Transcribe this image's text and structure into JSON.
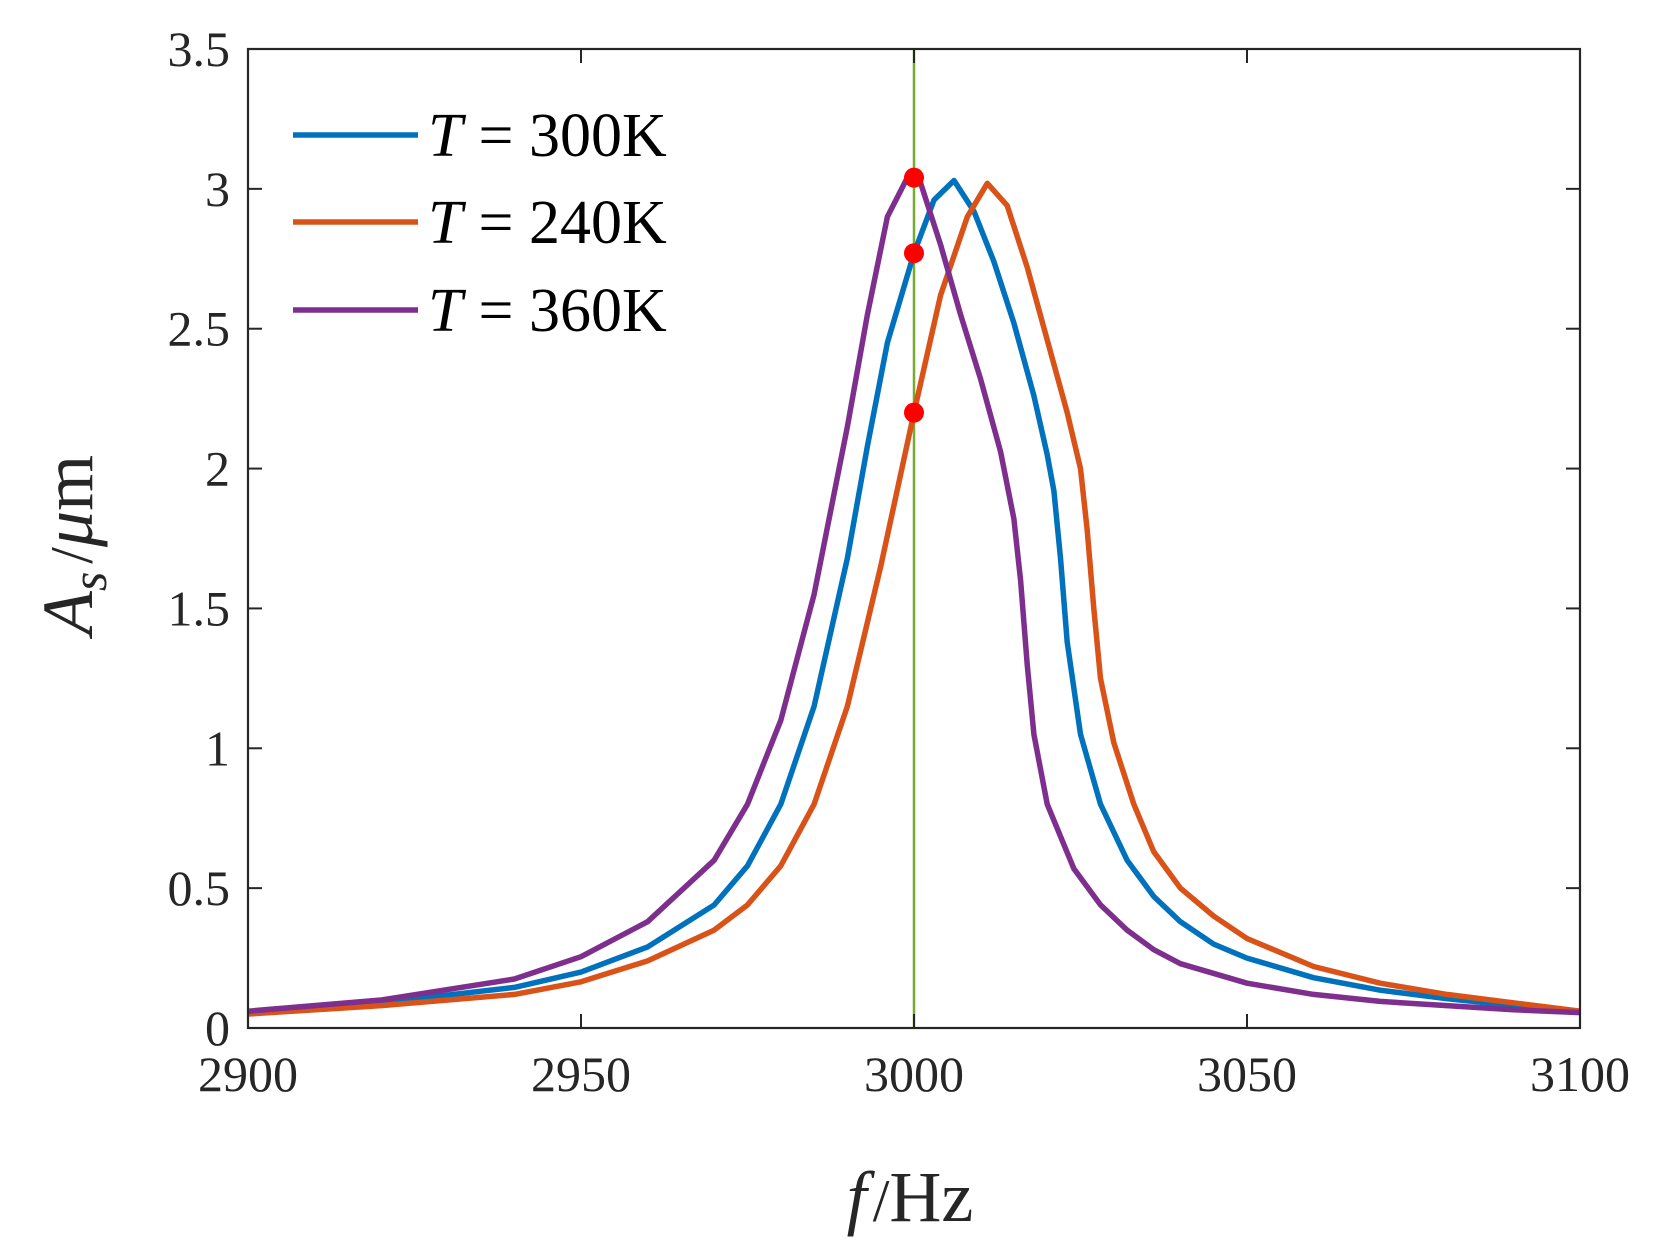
{
  "chart_data": {
    "type": "line",
    "title": "",
    "xlabel_symbol": "f",
    "xlabel_unit": "Hz",
    "ylabel_symbol": "A",
    "ylabel_subscript": "s",
    "ylabel_unit_mu": "μ",
    "ylabel_unit_m": "m",
    "xlim": [
      2900,
      3100
    ],
    "ylim": [
      0,
      3.5
    ],
    "x_ticks": [
      2900,
      2950,
      3000,
      3050,
      3100
    ],
    "x_tick_labels": [
      "2900",
      "2950",
      "3000",
      "3050",
      "3100"
    ],
    "y_ticks": [
      0,
      0.5,
      1,
      1.5,
      2,
      2.5,
      3,
      3.5
    ],
    "y_tick_labels": [
      "0",
      "0.5",
      "1",
      "1.5",
      "2",
      "2.5",
      "3",
      "3.5"
    ],
    "grid": false,
    "legend_position": "top-left",
    "reference_line": {
      "x": 3000,
      "color": "#77AC30"
    },
    "series": [
      {
        "name": "T = 300K",
        "legend_symbol": "T",
        "legend_text": "= 300K",
        "color": "#0072BD",
        "x": [
          2900,
          2920,
          2940,
          2950,
          2960,
          2970,
          2975,
          2980,
          2985,
          2990,
          2993,
          2996,
          3000,
          3003,
          3006,
          3009,
          3012,
          3015,
          3018,
          3020,
          3021,
          3022,
          3023,
          3025,
          3028,
          3032,
          3036,
          3040,
          3045,
          3050,
          3060,
          3070,
          3080,
          3090,
          3100
        ],
        "y": [
          0.055,
          0.09,
          0.145,
          0.2,
          0.29,
          0.44,
          0.58,
          0.8,
          1.15,
          1.68,
          2.08,
          2.45,
          2.77,
          2.96,
          3.03,
          2.92,
          2.74,
          2.52,
          2.26,
          2.05,
          1.92,
          1.68,
          1.38,
          1.05,
          0.8,
          0.6,
          0.47,
          0.38,
          0.3,
          0.25,
          0.18,
          0.135,
          0.105,
          0.08,
          0.06
        ]
      },
      {
        "name": "T = 240K",
        "legend_symbol": "T",
        "legend_text": "= 240K",
        "color": "#D95319",
        "x": [
          2900,
          2920,
          2940,
          2950,
          2960,
          2970,
          2975,
          2980,
          2985,
          2990,
          2995,
          3000,
          3004,
          3008,
          3011,
          3014,
          3017,
          3020,
          3023,
          3025,
          3026,
          3027,
          3028,
          3030,
          3033,
          3036,
          3040,
          3045,
          3050,
          3060,
          3070,
          3080,
          3090,
          3100
        ],
        "y": [
          0.05,
          0.08,
          0.12,
          0.165,
          0.24,
          0.35,
          0.44,
          0.58,
          0.8,
          1.15,
          1.65,
          2.2,
          2.62,
          2.9,
          3.02,
          2.94,
          2.72,
          2.46,
          2.2,
          2.0,
          1.78,
          1.5,
          1.25,
          1.02,
          0.8,
          0.63,
          0.5,
          0.4,
          0.32,
          0.22,
          0.16,
          0.12,
          0.09,
          0.06
        ]
      },
      {
        "name": "T = 360K",
        "legend_symbol": "T",
        "legend_text": "= 360K",
        "color": "#7E2F8E",
        "x": [
          2900,
          2920,
          2940,
          2950,
          2960,
          2970,
          2975,
          2980,
          2985,
          2990,
          2993,
          2996,
          2999,
          3001,
          3004,
          3007,
          3010,
          3013,
          3015,
          3016,
          3017,
          3018,
          3020,
          3024,
          3028,
          3032,
          3036,
          3040,
          3050,
          3060,
          3070,
          3080,
          3090,
          3100
        ],
        "y": [
          0.06,
          0.1,
          0.175,
          0.255,
          0.38,
          0.6,
          0.8,
          1.1,
          1.55,
          2.15,
          2.55,
          2.9,
          3.04,
          3.02,
          2.8,
          2.55,
          2.32,
          2.06,
          1.82,
          1.6,
          1.3,
          1.05,
          0.8,
          0.57,
          0.44,
          0.35,
          0.28,
          0.23,
          0.16,
          0.12,
          0.095,
          0.08,
          0.065,
          0.055
        ]
      }
    ],
    "markers": {
      "color": "#FF0000",
      "points": [
        {
          "x": 3000,
          "y": 3.04
        },
        {
          "x": 3000,
          "y": 2.77
        },
        {
          "x": 3000,
          "y": 2.2
        }
      ]
    }
  }
}
